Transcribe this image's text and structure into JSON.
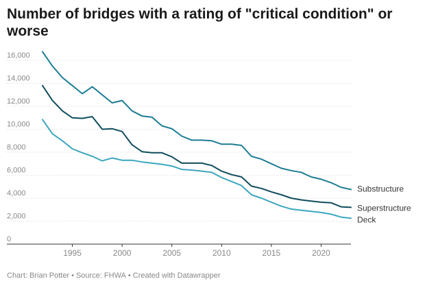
{
  "title": "Number of bridges with a rating of \"critical condition\" or worse",
  "footer": {
    "chart_credit": "Chart: Brian Potter",
    "source": "Source: FHWA",
    "tool": "Created with Datawrapper",
    "separator": "•"
  },
  "colors": {
    "substructure": "#1b7c93",
    "superstructure": "#0f4c5c",
    "deck": "#3aa6be",
    "grid": "#d9d9d9",
    "axis_text": "#888888",
    "label_text": "#333333"
  },
  "chart_data": {
    "type": "line",
    "title": "Number of bridges with a rating of \"critical condition\" or worse",
    "xlabel": "",
    "ylabel": "",
    "xlim": [
      1992,
      2023
    ],
    "ylim": [
      0,
      16000
    ],
    "x_ticks": [
      1995,
      2000,
      2005,
      2010,
      2015,
      2020
    ],
    "y_ticks": [
      0,
      2000,
      4000,
      6000,
      8000,
      10000,
      12000,
      14000,
      16000
    ],
    "y_tick_labels": [
      "0",
      "2,000",
      "4,000",
      "6,000",
      "8,000",
      "10,000",
      "12,000",
      "14,000",
      "16,000"
    ],
    "grid": true,
    "legend": "direct labels at line ends",
    "x": [
      1992,
      1993,
      1994,
      1995,
      1996,
      1997,
      1998,
      1999,
      2000,
      2001,
      2002,
      2003,
      2004,
      2005,
      2006,
      2007,
      2008,
      2009,
      2010,
      2011,
      2012,
      2013,
      2014,
      2015,
      2016,
      2017,
      2018,
      2019,
      2020,
      2021,
      2022,
      2023
    ],
    "series": [
      {
        "name": "Substructure",
        "color_key": "substructure",
        "values": [
          16750,
          15500,
          14500,
          13800,
          13100,
          13700,
          13000,
          12300,
          12500,
          11600,
          11150,
          11050,
          10300,
          10050,
          9400,
          9050,
          9050,
          9000,
          8700,
          8700,
          8600,
          7650,
          7400,
          7000,
          6600,
          6400,
          6250,
          5850,
          5650,
          5350,
          4950,
          4750
        ]
      },
      {
        "name": "Superstructure",
        "color_key": "superstructure",
        "values": [
          13800,
          12500,
          11600,
          11000,
          10950,
          11100,
          10000,
          10050,
          9800,
          8650,
          8050,
          7950,
          7950,
          7600,
          7050,
          7050,
          7050,
          6850,
          6350,
          6050,
          5850,
          5050,
          4850,
          4550,
          4300,
          4000,
          3850,
          3750,
          3650,
          3600,
          3250,
          3200
        ]
      },
      {
        "name": "Deck",
        "color_key": "deck",
        "values": [
          10850,
          9600,
          9000,
          8300,
          7950,
          7650,
          7250,
          7500,
          7300,
          7300,
          7150,
          7050,
          6950,
          6800,
          6500,
          6450,
          6350,
          6250,
          5800,
          5450,
          5100,
          4300,
          4000,
          3650,
          3300,
          3050,
          2950,
          2850,
          2750,
          2600,
          2350,
          2250
        ]
      }
    ]
  }
}
